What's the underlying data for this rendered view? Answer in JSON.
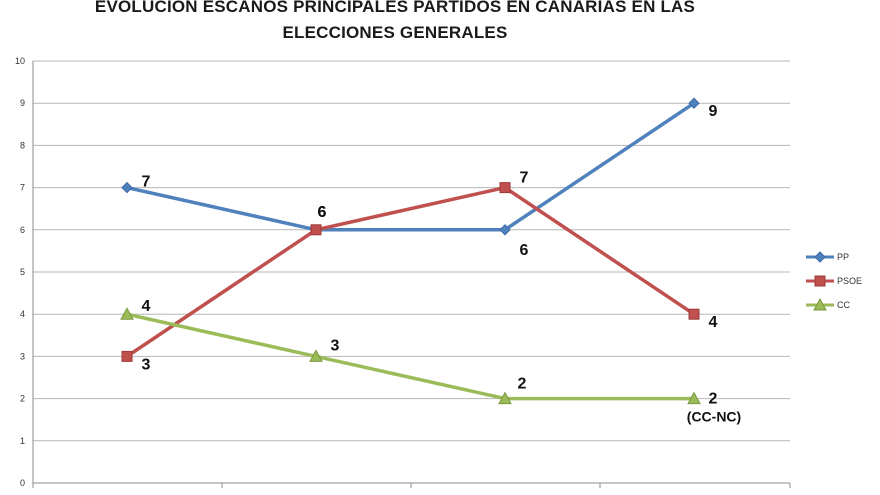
{
  "chart_data": {
    "type": "line",
    "title_lines": [
      "EVOLUCIÓN ESCAÑOS PRINCIPALES PARTIDOS EN CANARIAS EN LAS",
      "ELECCIONES GENERALES"
    ],
    "ylim": [
      0,
      10
    ],
    "yticks": [
      "0",
      "1",
      "2",
      "3",
      "4",
      "5",
      "6",
      "7",
      "8",
      "9",
      "10"
    ],
    "grid": true,
    "legend_position": "right",
    "points_per_series": 4,
    "series": [
      {
        "name": "PP",
        "color": "#4f81bd",
        "marker": "diamond",
        "values": [
          7,
          6,
          6,
          9
        ],
        "labels": [
          "7",
          "6",
          "6",
          "9"
        ]
      },
      {
        "name": "PSOE",
        "color": "#c0504d",
        "marker": "square",
        "values": [
          3,
          6,
          7,
          4
        ],
        "labels": [
          "3",
          "6",
          "7",
          "4"
        ]
      },
      {
        "name": "CC",
        "color": "#9bbb59",
        "marker": "triangle",
        "values": [
          4,
          3,
          2,
          2
        ],
        "labels": [
          "4",
          "3",
          "2",
          "2"
        ]
      }
    ],
    "annotations": [
      {
        "series": "CC",
        "index": 3,
        "text": "(CC-NC)"
      }
    ]
  }
}
